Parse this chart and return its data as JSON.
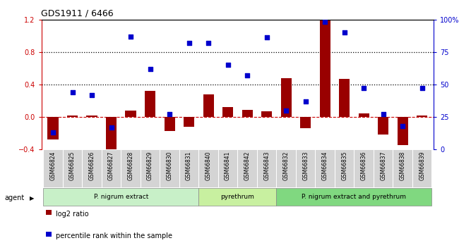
{
  "title": "GDS1911 / 6466",
  "samples": [
    "GSM66824",
    "GSM66825",
    "GSM66826",
    "GSM66827",
    "GSM66828",
    "GSM66829",
    "GSM66830",
    "GSM66831",
    "GSM66840",
    "GSM66841",
    "GSM66842",
    "GSM66843",
    "GSM66832",
    "GSM66833",
    "GSM66834",
    "GSM66835",
    "GSM66836",
    "GSM66837",
    "GSM66838",
    "GSM66839"
  ],
  "log2_ratio": [
    -0.28,
    0.02,
    0.02,
    -0.45,
    0.08,
    0.32,
    -0.17,
    -0.12,
    0.28,
    0.12,
    0.09,
    0.07,
    0.48,
    -0.14,
    1.2,
    0.47,
    0.04,
    -0.22,
    -0.35,
    0.02
  ],
  "percentile": [
    13,
    44,
    42,
    17,
    87,
    62,
    27,
    82,
    82,
    65,
    57,
    86,
    30,
    37,
    98,
    90,
    47,
    27,
    18,
    47
  ],
  "groups": [
    {
      "label": "P. nigrum extract",
      "start": 0,
      "end": 7,
      "color": "#c8f0c8"
    },
    {
      "label": "pyrethrum",
      "start": 8,
      "end": 11,
      "color": "#c8f0a0"
    },
    {
      "label": "P. nigrum extract and pyrethrum",
      "start": 12,
      "end": 19,
      "color": "#80d880"
    }
  ],
  "bar_color": "#990000",
  "dot_color": "#0000cc",
  "ylim_left": [
    -0.4,
    1.2
  ],
  "ylim_right": [
    0,
    100
  ],
  "yticks_left": [
    -0.4,
    0.0,
    0.4,
    0.8,
    1.2
  ],
  "yticks_right": [
    0,
    25,
    50,
    75,
    100
  ],
  "hlines": [
    0.4,
    0.8
  ],
  "legend_items": [
    "log2 ratio",
    "percentile rank within the sample"
  ],
  "bar_width": 0.55,
  "fig_bg": "#f0f0f0"
}
